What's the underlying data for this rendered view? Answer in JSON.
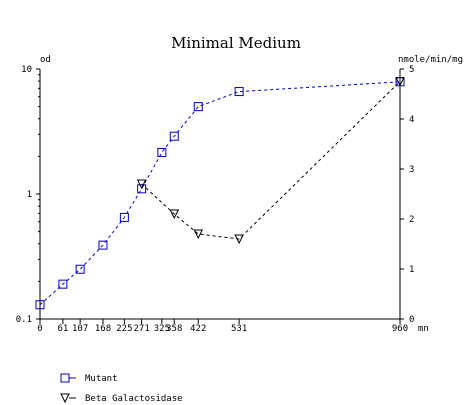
{
  "chart_data": {
    "type": "line",
    "title": "Minimal Medium",
    "xlabel": "mn",
    "ylabel_left": "od",
    "ylabel_right": "nmole/min/mg",
    "x_ticks": [
      0,
      61,
      107,
      168,
      225,
      271,
      325,
      358,
      422,
      531,
      960
    ],
    "x_tick_labels": [
      "0",
      "61",
      "107",
      "168",
      "225",
      "271",
      "325",
      "358",
      "422",
      "531",
      "960"
    ],
    "xlim": [
      0,
      960
    ],
    "y_left": {
      "scale": "log",
      "lim": [
        0.1,
        10
      ],
      "tick_labels": [
        "0.1",
        "1",
        "10"
      ]
    },
    "y_right": {
      "scale": "linear",
      "lim": [
        0,
        5
      ],
      "tick_labels": [
        "0",
        "1",
        "2",
        "3",
        "4",
        "5"
      ]
    },
    "grid": false,
    "legend_position": "bottom-left",
    "series": [
      {
        "name": "Mutant",
        "axis": "left",
        "marker": "square",
        "color": "#0000cc",
        "x": [
          0,
          61,
          107,
          168,
          225,
          271,
          325,
          358,
          422,
          531,
          960
        ],
        "y": [
          0.13,
          0.19,
          0.25,
          0.39,
          0.65,
          1.1,
          2.15,
          2.9,
          5.0,
          6.6,
          7.9
        ]
      },
      {
        "name": "Beta Galactosidase",
        "axis": "right",
        "marker": "triangle-down",
        "color": "#000000",
        "x": [
          271,
          358,
          422,
          531,
          960
        ],
        "y": [
          2.7,
          2.1,
          1.7,
          1.6,
          4.75
        ]
      }
    ]
  }
}
